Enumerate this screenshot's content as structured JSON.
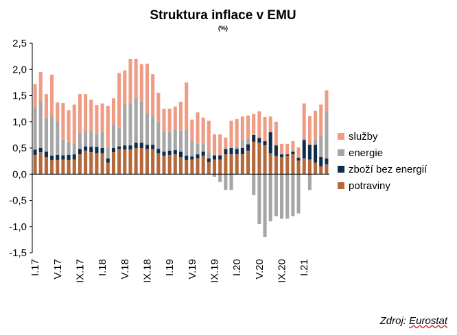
{
  "chart_data": {
    "type": "bar",
    "stacked": true,
    "title": "Struktura inflace v EMU",
    "subtitle": "(%)",
    "xlabel": "",
    "ylabel": "",
    "ylim": [
      -1.5,
      2.5
    ],
    "yticks": [
      "2,5",
      "2,0",
      "1,5",
      "1,0",
      "0,5",
      "0,0",
      "-0,5",
      "-1,0",
      "-1,5"
    ],
    "ytick_values": [
      2.5,
      2.0,
      1.5,
      1.0,
      0.5,
      0.0,
      -0.5,
      -1.0,
      -1.5
    ],
    "grid": false,
    "legend_position": "right",
    "categories": [
      "I.17",
      "II.17",
      "III.17",
      "IV.17",
      "V.17",
      "VI.17",
      "VII.17",
      "VIII.17",
      "IX.17",
      "X.17",
      "XI.17",
      "XII.17",
      "I.18",
      "II.18",
      "III.18",
      "IV.18",
      "V.18",
      "VI.18",
      "VII.18",
      "VIII.18",
      "IX.18",
      "X.18",
      "XI.18",
      "XII.18",
      "I.19",
      "II.19",
      "III.19",
      "IV.19",
      "V.19",
      "VI.19",
      "VII.19",
      "VIII.19",
      "IX.19",
      "X.19",
      "XI.19",
      "XII.19",
      "I.20",
      "II.20",
      "III.20",
      "IV.20",
      "V.20",
      "VI.20",
      "VII.20",
      "VIII.20",
      "IX.20",
      "X.20",
      "XI.20",
      "XII.20",
      "I.21",
      "II.21",
      "III.21",
      "IV.21",
      "V.21"
    ],
    "x_tick_labels": [
      "I.17",
      "V.17",
      "IX.17",
      "I.18",
      "V.18",
      "IX.18",
      "I.19",
      "V.19",
      "IX.19",
      "I.20",
      "V.20",
      "IX.20",
      "I.21"
    ],
    "series": [
      {
        "name": "potraviny",
        "color": "#b5693b",
        "values": [
          0.37,
          0.42,
          0.33,
          0.27,
          0.27,
          0.28,
          0.27,
          0.28,
          0.38,
          0.45,
          0.42,
          0.4,
          0.4,
          0.22,
          0.42,
          0.48,
          0.47,
          0.47,
          0.5,
          0.5,
          0.48,
          0.48,
          0.4,
          0.35,
          0.37,
          0.38,
          0.33,
          0.27,
          0.28,
          0.3,
          0.35,
          0.23,
          0.28,
          0.28,
          0.38,
          0.38,
          0.38,
          0.38,
          0.45,
          0.62,
          0.6,
          0.55,
          0.4,
          0.35,
          0.33,
          0.35,
          0.38,
          0.26,
          0.3,
          0.28,
          0.22,
          0.15,
          0.19
        ]
      },
      {
        "name": "zboží bez energií",
        "color": "#0d2d4e",
        "values": [
          0.1,
          0.08,
          0.1,
          0.08,
          0.1,
          0.08,
          0.1,
          0.1,
          0.1,
          0.08,
          0.1,
          0.12,
          0.1,
          0.08,
          0.08,
          0.05,
          0.08,
          0.08,
          0.1,
          0.1,
          0.08,
          0.08,
          0.08,
          0.08,
          0.08,
          0.08,
          0.1,
          0.08,
          0.06,
          0.08,
          0.08,
          0.07,
          0.08,
          0.08,
          0.1,
          0.12,
          0.1,
          0.12,
          0.12,
          0.13,
          0.09,
          0.08,
          0.4,
          0.2,
          0.05,
          0.03,
          0.05,
          0.05,
          0.35,
          0.28,
          0.34,
          0.18,
          0.11
        ]
      },
      {
        "name": "energie",
        "color": "#a6a6a6",
        "values": [
          0.8,
          0.9,
          0.65,
          0.75,
          0.65,
          0.3,
          0.25,
          0.2,
          0.3,
          0.3,
          0.3,
          0.25,
          0.3,
          0.2,
          0.45,
          0.35,
          0.78,
          0.8,
          0.85,
          0.78,
          0.6,
          0.55,
          0.52,
          0.4,
          0.35,
          0.38,
          0.4,
          0.5,
          0.3,
          0.2,
          0.15,
          0.12,
          -0.05,
          -0.15,
          -0.3,
          -0.3,
          0.05,
          0.15,
          0.1,
          -0.4,
          -0.95,
          -1.2,
          -0.9,
          -0.8,
          -0.85,
          -0.85,
          -0.8,
          -0.75,
          0.05,
          -0.3,
          0.1,
          0.4,
          0.9
        ]
      },
      {
        "name": "služby",
        "color": "#f09c84",
        "values": [
          0.45,
          0.55,
          0.45,
          0.8,
          0.35,
          0.7,
          0.6,
          0.75,
          0.75,
          0.7,
          0.6,
          0.55,
          0.55,
          0.8,
          0.5,
          1.05,
          0.65,
          0.85,
          0.75,
          0.72,
          0.95,
          0.8,
          0.55,
          0.42,
          0.45,
          0.45,
          0.55,
          0.9,
          0.4,
          0.6,
          0.5,
          0.6,
          0.4,
          0.4,
          0.22,
          0.52,
          0.52,
          0.45,
          0.45,
          0.4,
          0.51,
          0.46,
          0.3,
          0.45,
          0.2,
          0.2,
          0.2,
          0.2,
          0.65,
          0.55,
          0.55,
          0.6,
          0.4
        ]
      }
    ],
    "legend_order": [
      "služby",
      "energie",
      "zboží bez energií",
      "potraviny"
    ],
    "axis_color": "#000000"
  },
  "source": {
    "prefix": "Zdroj:",
    "name": "Eurostat"
  }
}
